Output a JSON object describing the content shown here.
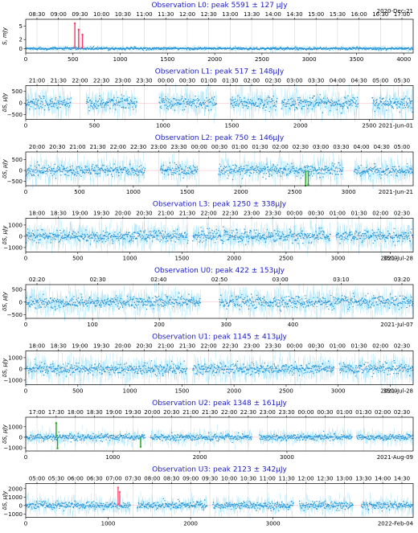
{
  "chart_data": [
    {
      "type": "scatter",
      "title": "Observation L0: peak 5591 ± 127 μJy",
      "date": "2020-Dec-21",
      "ylabel": "S, mJy",
      "xlim": [
        0,
        4100
      ],
      "ylim": [
        -1,
        6.5
      ],
      "xticks": [
        0,
        500,
        1000,
        1500,
        2000,
        2500,
        3000,
        3500,
        4000
      ],
      "yticks": [
        0,
        2,
        5
      ],
      "ytick_labels": [
        "0",
        "2",
        "5"
      ],
      "time_ticks": [
        "08:30",
        "09:00",
        "09:30",
        "10:00",
        "10:30",
        "11:00",
        "11:30",
        "12:00",
        "12:30",
        "13:00",
        "13:30",
        "14:00",
        "14:30",
        "15:00",
        "15:30",
        "16:00",
        "16:30",
        "17:00"
      ],
      "series": [
        {
          "level": 0,
          "noise": 0.25
        }
      ],
      "gaps": [],
      "spikes": [
        {
          "x": 520,
          "value": 5.6
        },
        {
          "x": 560,
          "value": 4.2
        },
        {
          "x": 600,
          "value": 3.1
        }
      ],
      "spike_color": "#ff3366"
    },
    {
      "type": "scatter",
      "title": "Observation L1: peak 517 ± 148μJy",
      "date": "2021-Jun-01",
      "ylabel": "δS, μJy",
      "xlim": [
        0,
        2820
      ],
      "ylim": [
        -700,
        750
      ],
      "xticks": [
        0,
        500,
        1000,
        1500,
        2000,
        2500
      ],
      "yticks": [
        -500,
        0,
        500
      ],
      "ytick_labels": [
        "−500",
        "0",
        "500"
      ],
      "time_ticks": [
        "21:00",
        "21:30",
        "22:00",
        "22:30",
        "23:00",
        "23:30",
        "00:00",
        "00:30",
        "01:00",
        "01:30",
        "02:00",
        "02:30",
        "03:00",
        "03:30",
        "04:00",
        "04:30",
        "05:00",
        "05:30"
      ],
      "series": [
        {
          "level": 0,
          "noise": 250
        }
      ],
      "gaps": [
        [
          330,
          440
        ],
        [
          810,
          970
        ],
        [
          1390,
          1490
        ],
        [
          1830,
          1860
        ],
        [
          2420,
          2520
        ]
      ],
      "spikes": [],
      "spike_color": "#22aa22"
    },
    {
      "type": "scatter",
      "title": "Observation L2: peak 750 ± 146μJy",
      "date": "2021-Jun-21",
      "ylabel": "δS, μJy",
      "xlim": [
        0,
        3600
      ],
      "ylim": [
        -700,
        850
      ],
      "xticks": [
        0,
        500,
        1000,
        1500,
        2000,
        2500,
        3000
      ],
      "yticks": [
        -500,
        0,
        500
      ],
      "ytick_labels": [
        "−500",
        "0",
        "500"
      ],
      "time_ticks": [
        "20:00",
        "20:30",
        "21:00",
        "21:30",
        "22:00",
        "22:30",
        "23:00",
        "23:30",
        "00:00",
        "00:30",
        "01:00",
        "01:30",
        "02:00",
        "02:30",
        "03:00",
        "03:30",
        "04:00",
        "04:30",
        "05:00"
      ],
      "series": [
        {
          "level": 0,
          "noise": 230
        }
      ],
      "gaps": [
        [
          1110,
          1250
        ],
        [
          1600,
          1790
        ],
        [
          2950,
          3050
        ]
      ],
      "spikes": [
        {
          "x": 2600,
          "value": -700
        },
        {
          "x": 2625,
          "value": -650
        }
      ],
      "spike_color": "#22aa22"
    },
    {
      "type": "scatter",
      "title": "Observation L3: peak 1250 ± 338μJy",
      "date": "2021-Jul-28",
      "ylabel": "δS, μJy",
      "xlim": [
        0,
        3720
      ],
      "ylim": [
        -1400,
        1600
      ],
      "xticks": [
        0,
        500,
        1000,
        1500,
        2000,
        2500,
        3000,
        3500
      ],
      "yticks": [
        -1000,
        0,
        1000
      ],
      "ytick_labels": [
        "−1000",
        "0",
        "1000"
      ],
      "time_ticks": [
        "18:00",
        "18:30",
        "19:00",
        "19:30",
        "20:00",
        "20:30",
        "21:00",
        "21:30",
        "22:00",
        "22:30",
        "23:00",
        "23:30",
        "00:00",
        "00:30",
        "01:00",
        "01:30",
        "02:00",
        "02:30"
      ],
      "series": [
        {
          "level": 0,
          "noise": 480
        }
      ],
      "gaps": [
        [
          1560,
          1600
        ],
        [
          2930,
          2980
        ]
      ],
      "spikes": [],
      "spike_color": "#22aa22"
    },
    {
      "type": "scatter",
      "title": "Observation U0: peak 422 ± 153μJy",
      "date": "2021-Jul-07",
      "ylabel": "δS, μJy",
      "xlim": [
        0,
        580
      ],
      "ylim": [
        -650,
        700
      ],
      "xticks": [
        0,
        100,
        200,
        300,
        400
      ],
      "yticks": [
        -500,
        0,
        500
      ],
      "ytick_labels": [
        "−500",
        "0",
        "500"
      ],
      "time_ticks": [
        "02:20",
        "02:30",
        "02:40",
        "02:50",
        "03:00",
        "03:10",
        "03:20"
      ],
      "series": [
        {
          "level": 0,
          "noise": 220
        }
      ],
      "gaps": [
        [
          262,
          290
        ]
      ],
      "spikes": [],
      "spike_color": "#22aa22"
    },
    {
      "type": "scatter",
      "title": "Observation U1: peak 1145 ± 413μJy",
      "date": "2021-Jul-28",
      "ylabel": "δS, μJy",
      "xlim": [
        0,
        3720
      ],
      "ylim": [
        -1400,
        1600
      ],
      "xticks": [
        0,
        500,
        1000,
        1500,
        2000,
        2500,
        3000,
        3500
      ],
      "yticks": [
        -1000,
        0,
        1000
      ],
      "ytick_labels": [
        "−1000",
        "0",
        "1000"
      ],
      "time_ticks": [
        "18:00",
        "18:30",
        "19:00",
        "19:30",
        "20:00",
        "20:30",
        "21:00",
        "21:30",
        "22:00",
        "22:30",
        "23:00",
        "23:30",
        "00:00",
        "00:30",
        "01:00",
        "01:30",
        "02:00",
        "02:30"
      ],
      "series": [
        {
          "level": 0,
          "noise": 470
        }
      ],
      "gaps": [
        [
          1550,
          1600
        ],
        [
          2960,
          3010
        ]
      ],
      "spikes": [],
      "spike_color": "#22aa22"
    },
    {
      "type": "scatter",
      "title": "Observation U2: peak 1348 ± 161μJy",
      "date": "2021-Aug-09",
      "ylabel": "δS, μJy",
      "xlim": [
        0,
        4450
      ],
      "ylim": [
        -1300,
        1900
      ],
      "xticks": [
        0,
        1000,
        2000,
        3000
      ],
      "yticks": [
        -1000,
        0,
        1000
      ],
      "ytick_labels": [
        "−1000",
        "0",
        "1000"
      ],
      "time_ticks": [
        "17:00",
        "17:30",
        "18:00",
        "18:30",
        "19:00",
        "19:30",
        "20:00",
        "20:30",
        "21:00",
        "21:30",
        "22:00",
        "22:30",
        "23:00",
        "23:30",
        "00:00",
        "00:30",
        "01:00",
        "01:30",
        "02:00",
        "02:30"
      ],
      "series": [
        {
          "level": 0,
          "noise": 280
        }
      ],
      "gaps": [
        [
          1370,
          1430
        ],
        [
          2600,
          2680
        ],
        [
          3750,
          3800
        ]
      ],
      "spikes": [
        {
          "x": 350,
          "value": 1350
        },
        {
          "x": 365,
          "value": -1050
        },
        {
          "x": 1320,
          "value": -900
        }
      ],
      "spike_color": "#22aa22"
    },
    {
      "type": "scatter",
      "title": "Observation U3: peak 2123 ± 342μJy",
      "date": "2022-Feb-04",
      "ylabel": "δS, μJy",
      "xlim": [
        0,
        4700
      ],
      "ylim": [
        -1400,
        2600
      ],
      "xticks": [
        0,
        1000,
        2000,
        3000
      ],
      "yticks": [
        -1000,
        0,
        1000,
        2000
      ],
      "ytick_labels": [
        "−1000",
        "0",
        "1000",
        "2000"
      ],
      "time_ticks": [
        "05:00",
        "05:30",
        "06:00",
        "06:30",
        "07:00",
        "07:30",
        "08:00",
        "08:30",
        "09:00",
        "09:30",
        "10:00",
        "10:30",
        "11:00",
        "11:30",
        "12:00",
        "12:30",
        "13:00",
        "13:30",
        "14:00",
        "14:30"
      ],
      "series": [
        {
          "level": 0,
          "noise": 420
        }
      ],
      "gaps": [
        [
          1270,
          1350
        ],
        [
          2200,
          2270
        ],
        [
          3250,
          3320
        ],
        [
          3970,
          4070
        ]
      ],
      "spikes": [
        {
          "x": 1120,
          "value": 2123
        },
        {
          "x": 1140,
          "value": 1600
        }
      ],
      "spike_color": "#ff5577"
    }
  ]
}
